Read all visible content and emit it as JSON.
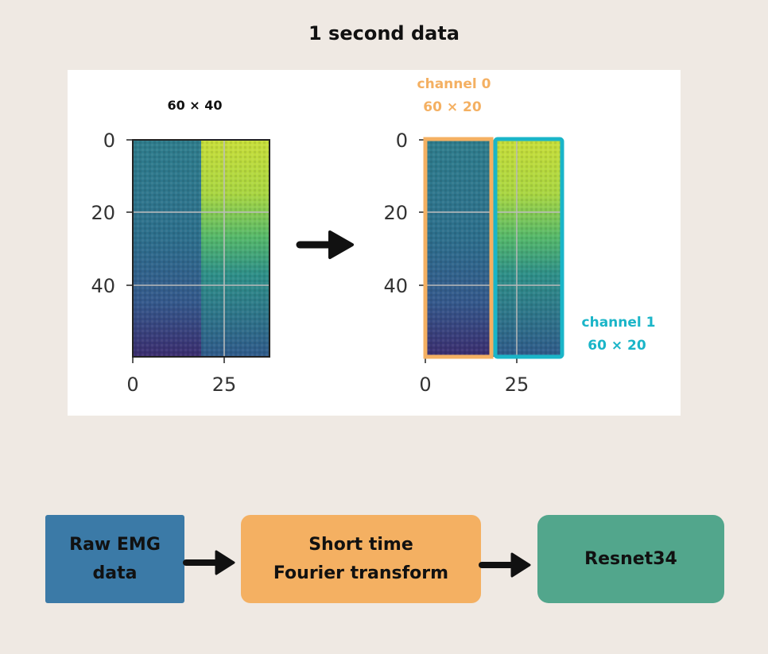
{
  "title": "1 second data",
  "left_plot": {
    "size_label": "60 × 40",
    "y_ticks": [
      "0",
      "20",
      "40"
    ],
    "x_ticks": [
      "0",
      "25"
    ]
  },
  "right_plot": {
    "y_ticks": [
      "0",
      "20",
      "40"
    ],
    "x_ticks": [
      "0",
      "25"
    ],
    "channel0": {
      "name": "channel 0",
      "size": "60 × 20",
      "color": "#f4b062"
    },
    "channel1": {
      "name": "channel 1",
      "size": "60 × 20",
      "color": "#1ab5c8"
    }
  },
  "pipeline": {
    "raw_line1": "Raw EMG",
    "raw_line2": "data",
    "stft_line1": "Short time",
    "stft_line2": "Fourier transform",
    "model": "Resnet34"
  },
  "colors": {
    "background": "#efe9e3",
    "raw_box": "#3b7aa7",
    "stft_box": "#f4b062",
    "model_box": "#52a68c"
  }
}
